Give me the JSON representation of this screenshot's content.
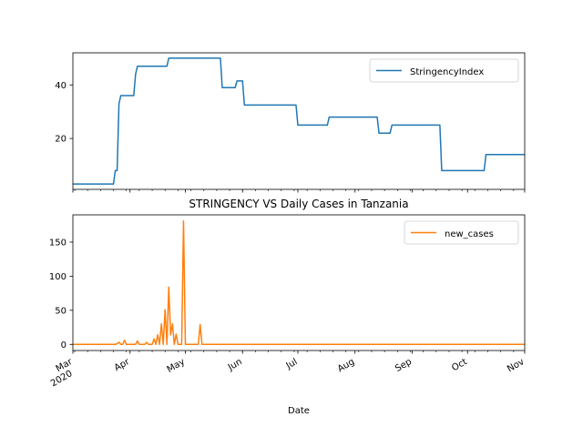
{
  "chart_data": [
    {
      "type": "line",
      "title": "",
      "xlabel": "",
      "ylabel": "",
      "xlim": [
        "2020-03-01",
        "2020-11-01"
      ],
      "ylim": [
        1,
        52
      ],
      "yticks": [
        20,
        40
      ],
      "grid": false,
      "legend_position": "top-right",
      "series": [
        {
          "name": "StringencyIndex",
          "color": "#1f77b4",
          "x": [
            "2020-03-01",
            "2020-03-23",
            "2020-03-24",
            "2020-03-25",
            "2020-03-26",
            "2020-03-27",
            "2020-04-03",
            "2020-04-04",
            "2020-04-05",
            "2020-04-21",
            "2020-04-22",
            "2020-05-20",
            "2020-05-21",
            "2020-05-28",
            "2020-05-29",
            "2020-06-01",
            "2020-06-02",
            "2020-06-30",
            "2020-07-01",
            "2020-07-17",
            "2020-07-18",
            "2020-08-13",
            "2020-08-14",
            "2020-08-20",
            "2020-08-21",
            "2020-09-16",
            "2020-09-17",
            "2020-10-10",
            "2020-10-11",
            "2020-11-01"
          ],
          "y": [
            3,
            3,
            8,
            8,
            33,
            36,
            36,
            44,
            47,
            47,
            50,
            50,
            39,
            39,
            41.5,
            41.5,
            32.5,
            32.5,
            25,
            25,
            28,
            28,
            22,
            22,
            25,
            25,
            8,
            8,
            14,
            14
          ]
        }
      ]
    },
    {
      "type": "line",
      "title": "STRINGENCY VS Daily Cases in Tanzania",
      "xlabel": "Date",
      "ylabel": "",
      "xlim": [
        "2020-03-01",
        "2020-11-01"
      ],
      "ylim": [
        -9,
        190
      ],
      "yticks": [
        0,
        50,
        100,
        150
      ],
      "xtick_labels": [
        {
          "date": "2020-03-01",
          "label": "Mar",
          "year": "2020"
        },
        {
          "date": "2020-04-01",
          "label": "Apr"
        },
        {
          "date": "2020-05-01",
          "label": "May"
        },
        {
          "date": "2020-06-01",
          "label": "Jun"
        },
        {
          "date": "2020-07-01",
          "label": "Jul"
        },
        {
          "date": "2020-08-01",
          "label": "Aug"
        },
        {
          "date": "2020-09-01",
          "label": "Sep"
        },
        {
          "date": "2020-10-01",
          "label": "Oct"
        },
        {
          "date": "2020-11-01",
          "label": "Nov"
        }
      ],
      "grid": false,
      "legend_position": "top-right",
      "series": [
        {
          "name": "new_cases",
          "color": "#ff7f0e",
          "x": [
            "2020-03-01",
            "2020-03-23",
            "2020-03-24",
            "2020-03-25",
            "2020-03-26",
            "2020-03-27",
            "2020-03-28",
            "2020-03-29",
            "2020-03-30",
            "2020-04-04",
            "2020-04-05",
            "2020-04-06",
            "2020-04-09",
            "2020-04-10",
            "2020-04-11",
            "2020-04-13",
            "2020-04-14",
            "2020-04-15",
            "2020-04-16",
            "2020-04-17",
            "2020-04-18",
            "2020-04-19",
            "2020-04-20",
            "2020-04-21",
            "2020-04-22",
            "2020-04-23",
            "2020-04-24",
            "2020-04-25",
            "2020-04-26",
            "2020-04-27",
            "2020-04-28",
            "2020-04-29",
            "2020-04-30",
            "2020-05-01",
            "2020-05-08",
            "2020-05-09",
            "2020-05-10",
            "2020-11-01"
          ],
          "y": [
            0,
            0,
            0,
            1,
            3,
            0,
            0,
            6,
            0,
            0,
            5,
            0,
            0,
            3,
            0,
            0,
            8,
            0,
            14,
            0,
            30,
            0,
            51,
            0,
            84,
            14,
            30,
            0,
            15,
            0,
            0,
            0,
            181,
            0,
            0,
            29,
            0,
            0
          ]
        }
      ]
    }
  ]
}
